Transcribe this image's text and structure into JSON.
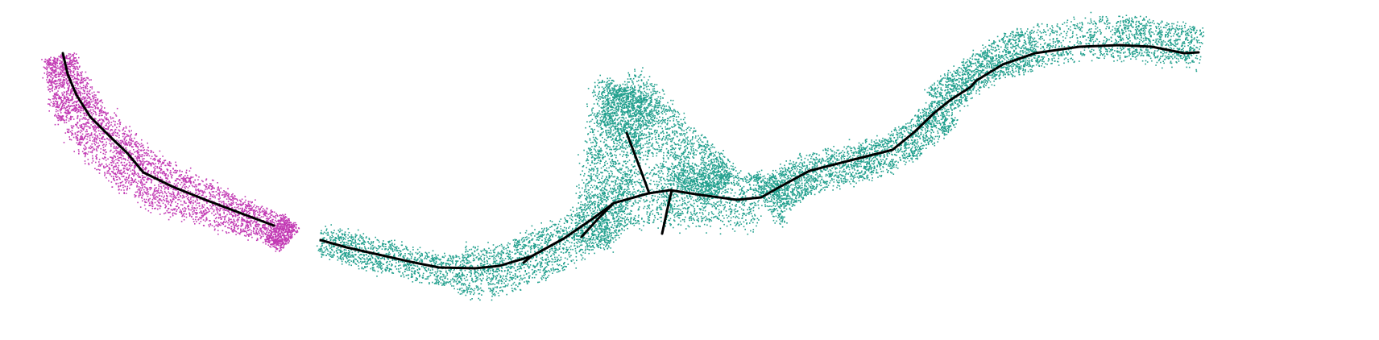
{
  "colors": {
    "background": "#ffffff",
    "cloud_magenta": "#c23ab4",
    "cloud_teal": "#22a08e",
    "skeleton": "#000000"
  },
  "clouds": [
    {
      "name": "left-point-cloud",
      "color_key": "cloud_magenta"
    },
    {
      "name": "right-point-cloud",
      "color_key": "cloud_teal"
    }
  ]
}
